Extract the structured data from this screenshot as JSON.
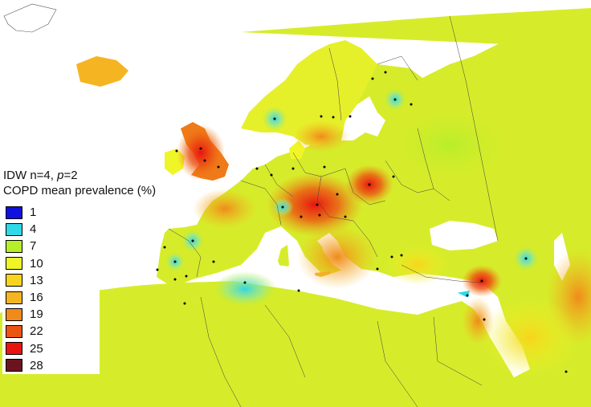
{
  "title": {
    "method_prefix": "IDW n=4, ",
    "method_p": "p",
    "method_suffix": "=2",
    "subtitle": "COPD mean prevalence (%)"
  },
  "legend": [
    {
      "label": "1",
      "color": "#1010e0"
    },
    {
      "label": "4",
      "color": "#2fd8e8"
    },
    {
      "label": "7",
      "color": "#b7ee2a"
    },
    {
      "label": "10",
      "color": "#f0f527"
    },
    {
      "label": "13",
      "color": "#f7d51c"
    },
    {
      "label": "16",
      "color": "#f5b522"
    },
    {
      "label": "19",
      "color": "#f08a1a"
    },
    {
      "label": "22",
      "color": "#ec5412"
    },
    {
      "label": "25",
      "color": "#e81410"
    },
    {
      "label": "28",
      "color": "#6b1420"
    }
  ],
  "colors": {
    "sea": "#ffffff",
    "land_base": "#d6ec2a",
    "borders": "#404040"
  }
}
